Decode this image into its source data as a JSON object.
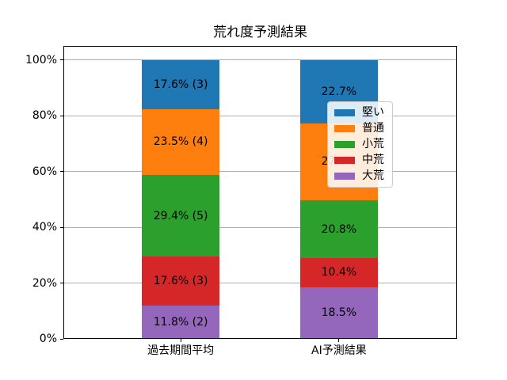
{
  "chart_data": {
    "type": "bar",
    "stacked": true,
    "title": "荒れ度予測結果",
    "categories": [
      "過去期間平均",
      "AI予測結果"
    ],
    "series": [
      {
        "name": "堅い",
        "color": "#1f77b4",
        "values": [
          17.6,
          22.7
        ],
        "labels": [
          "17.6% (3)",
          "22.7%"
        ]
      },
      {
        "name": "普通",
        "color": "#ff7f0e",
        "values": [
          23.5,
          27.6
        ],
        "labels": [
          "23.5% (4)",
          "27.6%"
        ]
      },
      {
        "name": "小荒",
        "color": "#2ca02c",
        "values": [
          29.4,
          20.8
        ],
        "labels": [
          "29.4% (5)",
          "20.8%"
        ]
      },
      {
        "name": "中荒",
        "color": "#d62728",
        "values": [
          17.6,
          10.4
        ],
        "labels": [
          "17.6% (3)",
          "10.4%"
        ]
      },
      {
        "name": "大荒",
        "color": "#9467bd",
        "values": [
          11.8,
          18.5
        ],
        "labels": [
          "11.8% (2)",
          "18.5%"
        ]
      }
    ],
    "y_ticks": [
      "0%",
      "20%",
      "40%",
      "60%",
      "80%",
      "100%"
    ],
    "ylim": [
      0,
      105
    ],
    "xlabel": "",
    "ylabel": "",
    "grid": true,
    "grid_color": "#b0b0b0",
    "legend_position": "center-right",
    "label_color": "#000000",
    "background_color": "#ffffff"
  }
}
